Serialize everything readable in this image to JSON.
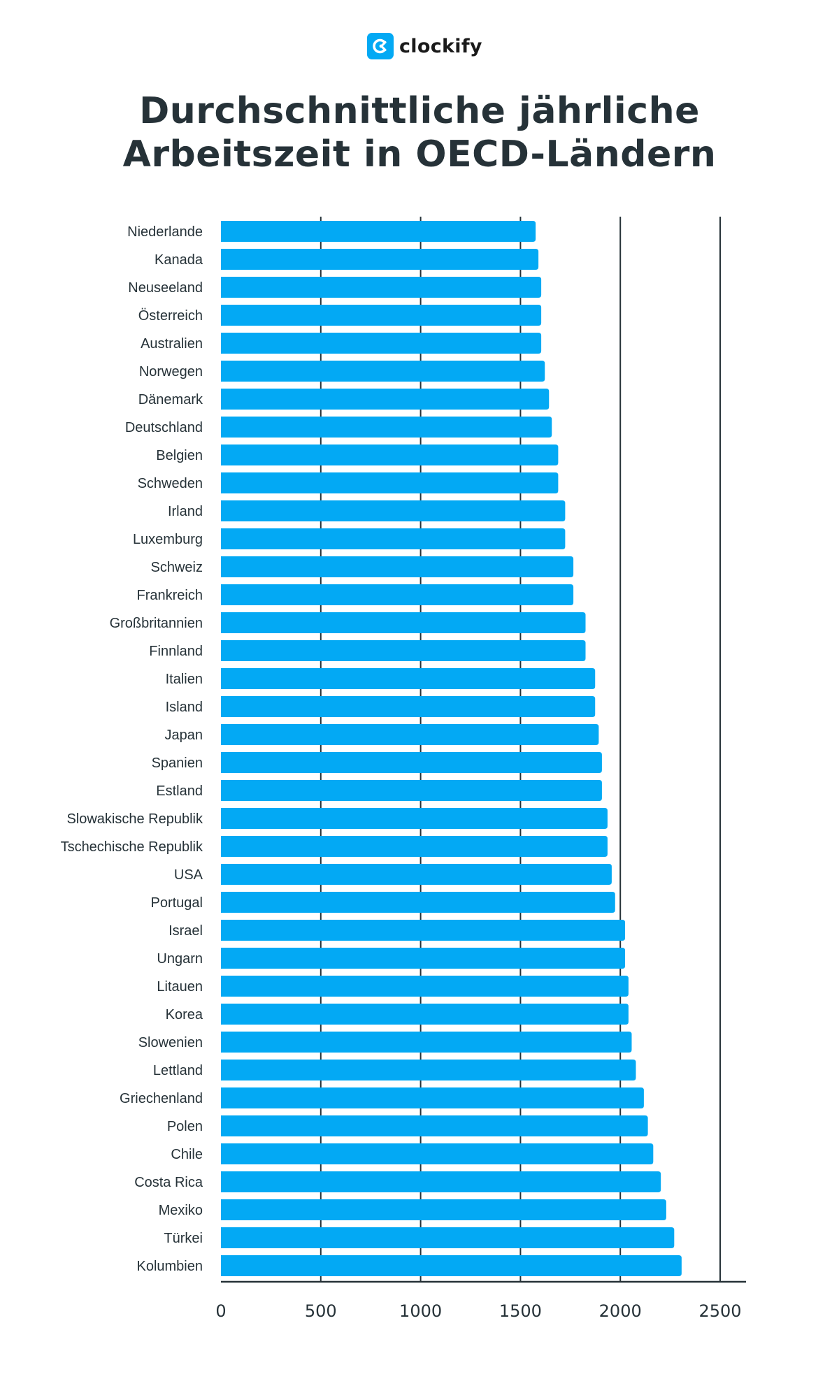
{
  "brand": {
    "name": "clockify",
    "logo_icon": "clockify-logo-icon",
    "color": "#03a9f4"
  },
  "title": {
    "line1": "Durchschnittliche jährliche",
    "line2": "Arbeitszeit in OECD-Ländern"
  },
  "chart_data": {
    "type": "bar",
    "orientation": "horizontal",
    "title": "Durchschnittliche jährliche Arbeitszeit in OECD-Ländern",
    "xlabel": "",
    "ylabel": "",
    "xlim": [
      0,
      2500
    ],
    "xticks": [
      0,
      500,
      1000,
      1500,
      2000,
      2500
    ],
    "grid": true,
    "bar_color": "#03a9f4",
    "axis_color": "#263238",
    "categories": [
      "Niederlande",
      "Kanada",
      "Neuseeland",
      "Österreich",
      "Australien",
      "Norwegen",
      "Dänemark",
      "Deutschland",
      "Belgien",
      "Schweden",
      "Irland",
      "Luxemburg",
      "Schweiz",
      "Frankreich",
      "Großbritannien",
      "Finnland",
      "Italien",
      "Island",
      "Japan",
      "Spanien",
      "Estland",
      "Slowakische Republik",
      "Tschechische Republik",
      "USA",
      "Portugal",
      "Israel",
      "Ungarn",
      "Litauen",
      "Korea",
      "Slowenien",
      "Lettland",
      "Griechenland",
      "Polen",
      "Chile",
      "Costa Rica",
      "Mexiko",
      "Türkei",
      "Kolumbien"
    ],
    "values": [
      1576,
      1590,
      1604,
      1604,
      1604,
      1622,
      1643,
      1657,
      1689,
      1689,
      1724,
      1724,
      1765,
      1765,
      1826,
      1826,
      1874,
      1874,
      1892,
      1908,
      1908,
      1936,
      1936,
      1957,
      1974,
      2024,
      2024,
      2041,
      2041,
      2057,
      2078,
      2118,
      2138,
      2165,
      2203,
      2230,
      2270,
      2307
    ]
  }
}
